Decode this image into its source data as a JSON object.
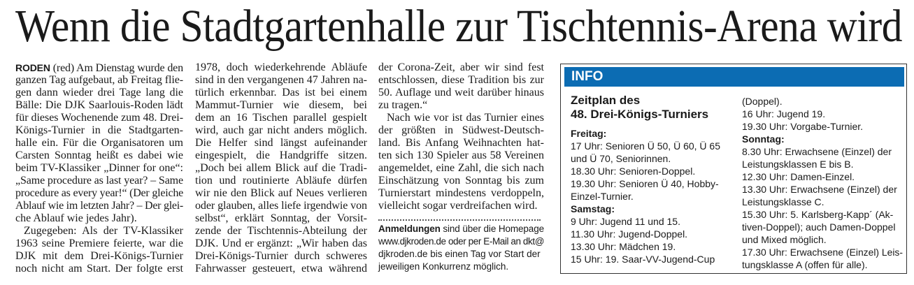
{
  "headline": "Wenn die Stadtgartenhalle zur Tischtennis-Arena wird",
  "article": {
    "dateline": "RODEN",
    "columns": [
      [
        {
          "t": " (red) Am Dienstag wurde den",
          "lead": true
        },
        {
          "t": "ganzen Tag aufgebaut, ab Freitag flie-"
        },
        {
          "t": "gen dann wieder drei Tage lang die"
        },
        {
          "t": "Bälle: Die DJK Saarlouis-Roden lädt"
        },
        {
          "t": "für dieses Wochenende zum 48. Drei-"
        },
        {
          "t": "Königs-Turnier in die Stadtgarten-"
        },
        {
          "t": "halle ein. Für die Organisatoren um"
        },
        {
          "t": "Carsten Sonntag heißt es dabei wie"
        },
        {
          "t": "beim TV-Klassiker „Dinner for one“:"
        },
        {
          "t": "„Same procedure as last year? – Same"
        },
        {
          "t": "procedure as every year!“ (Der gleiche"
        },
        {
          "t": "Ablauf wie im letzten Jahr? – Der glei-"
        },
        {
          "t": "che Ablauf wie jedes Jahr).",
          "last": true
        },
        {
          "t": "Zugegeben: Als der TV-Klassiker",
          "indent": true
        },
        {
          "t": "1963 seine Premiere feierte, war die"
        },
        {
          "t": "DJK mit dem Drei-Königs-Turnier"
        },
        {
          "t": "noch nicht am Start. Der folgte erst"
        }
      ],
      [
        {
          "t": "1978, doch wiederkehrende Abläufe"
        },
        {
          "t": "sind in den vergangenen 47 Jahren na-"
        },
        {
          "t": "türlich erkennbar. Das ist bei einem"
        },
        {
          "t": "Mammut-Turnier wie diesem, bei"
        },
        {
          "t": "dem an 16 Tischen parallel gespielt"
        },
        {
          "t": "wird, auch gar nicht anders möglich."
        },
        {
          "t": "Die Helfer sind längst aufeinander"
        },
        {
          "t": "eingespielt, die Handgriffe sitzen."
        },
        {
          "t": "„Doch bei allem Blick auf die Tradi-"
        },
        {
          "t": "tion und routinierte Abläufe dürfen"
        },
        {
          "t": "wir nie den Blick auf Neues verlieren"
        },
        {
          "t": "oder glauben, alles liefe irgendwie von"
        },
        {
          "t": "selbst“, erklärt Sonntag, der Vorsit-"
        },
        {
          "t": "zende der Tischtennis-Abteilung der"
        },
        {
          "t": "DJK. Und er ergänzt: „Wir haben das"
        },
        {
          "t": "Drei-Königs-Turnier durch schweres"
        },
        {
          "t": "Fahrwasser gesteuert, etwa während"
        }
      ],
      [
        {
          "t": "der Corona-Zeit, aber wir sind fest"
        },
        {
          "t": "entschlossen, diese Tradition bis zur"
        },
        {
          "t": "50. Auflage und weit darüber hinaus"
        },
        {
          "t": "zu tragen.“",
          "last": true
        },
        {
          "t": "Nach wie vor ist das Turnier eines",
          "indent": true
        },
        {
          "t": "der größten in Südwest-Deutsch-"
        },
        {
          "t": "land. Bis Anfang Weihnachten hat-"
        },
        {
          "t": "ten sich 130 Spieler aus 58 Vereinen"
        },
        {
          "t": "angemeldet, eine Zahl, die sich nach"
        },
        {
          "t": "Einschätzung von Sonntag bis zum"
        },
        {
          "t": "Turnierstart mindestens verdoppeln,"
        },
        {
          "t": "vielleicht sogar verdreifachen wird.",
          "last": true
        }
      ]
    ],
    "note": {
      "bold": "Anmeldungen",
      "lines": [
        " sind über die Homepage",
        "www.djkroden.de oder per E-Mail an dkt@",
        "djkroden.de bis einen Tag vor Start der",
        "jeweiligen Konkurrenz möglich."
      ]
    }
  },
  "info": {
    "label": "INFO",
    "accent_color": "#0c6cb3",
    "title_lines": [
      "Zeitplan des",
      "48. Drei-Königs-Turniers"
    ],
    "left": [
      {
        "t": "Freitag:",
        "day": true
      },
      {
        "t": "17 Uhr: Senioren Ü 50, Ü 60, Ü 65"
      },
      {
        "t": "und Ü 70, Seniorinnen."
      },
      {
        "t": "18.30 Uhr: Senioren-Doppel."
      },
      {
        "t": "19.30 Uhr: Senioren Ü 40, Hobby-"
      },
      {
        "t": "Einzel-Turnier."
      },
      {
        "t": "Samstag:",
        "day": true
      },
      {
        "t": "9 Uhr: Jugend 11 und 15."
      },
      {
        "t": "11.30 Uhr: Jugend-Doppel."
      },
      {
        "t": "13.30 Uhr: Mädchen 19."
      },
      {
        "t": "15 Uhr: 19. Saar-VV-Jugend-Cup"
      }
    ],
    "right": [
      {
        "t": "(Doppel)."
      },
      {
        "t": "16 Uhr: Jugend 19."
      },
      {
        "t": "19.30 Uhr: Vorgabe-Turnier."
      },
      {
        "t": "Sonntag:",
        "day": true
      },
      {
        "t": "8.30 Uhr: Erwachsene (Einzel) der"
      },
      {
        "t": "Leistungsklassen E bis B."
      },
      {
        "t": "12.30 Uhr: Damen-Einzel."
      },
      {
        "t": "13.30 Uhr: Erwachsene (Einzel) der"
      },
      {
        "t": "Leistungsklasse C."
      },
      {
        "t": "15.30 Uhr: 5. Karlsberg-Kapp´ (Ak-"
      },
      {
        "t": "tiven-Doppel); auch Damen-Doppel"
      },
      {
        "t": "und Mixed möglich."
      },
      {
        "t": "17.30 Uhr: Erwachsene (Einzel) Leis-"
      },
      {
        "t": "tungsklasse A (offen für alle)."
      }
    ]
  }
}
